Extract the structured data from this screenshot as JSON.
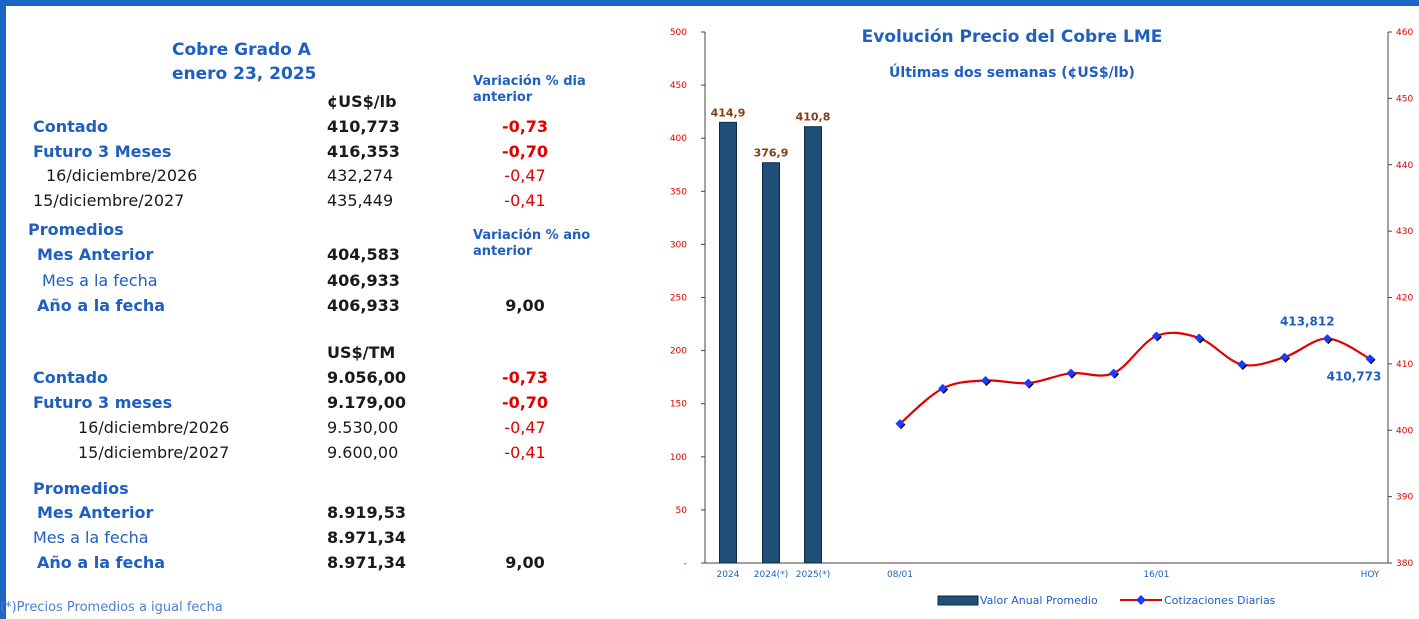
{
  "table": {
    "title": "Cobre Grado A",
    "date": "enero 23, 2025",
    "var_dia_header_1": "Variación % dia",
    "var_dia_header_2": "anterior",
    "var_anio_header_1": "Variación % año",
    "var_anio_header_2": "anterior",
    "unit_lb": "¢US$/lb",
    "unit_tm": "US$/TM",
    "lb_rows": [
      {
        "label": "Contado",
        "value": "410,773",
        "var": "-0,73"
      },
      {
        "label": "Futuro 3 Meses",
        "value": "416,353",
        "var": "-0,70"
      },
      {
        "label": "16/diciembre/2026",
        "value": "432,274",
        "var": "-0,47"
      },
      {
        "label": "15/diciembre/2027",
        "value": "435,449",
        "var": "-0,41"
      }
    ],
    "lb_promedios": {
      "title": "Promedios",
      "rows": [
        {
          "label": "Mes Anterior",
          "value": "404,583",
          "var": ""
        },
        {
          "label": "Mes a la fecha",
          "value": "406,933",
          "var": ""
        },
        {
          "label": "Año a la fecha",
          "value": "406,933",
          "var": "9,00"
        }
      ]
    },
    "tm_rows": [
      {
        "label": "Contado",
        "value": "9.056,00",
        "var": "-0,73"
      },
      {
        "label": "Futuro 3 meses",
        "value": "9.179,00",
        "var": "-0,70"
      },
      {
        "label": "16/diciembre/2026",
        "value": "9.530,00",
        "var": "-0,47"
      },
      {
        "label": "15/diciembre/2027",
        "value": "9.600,00",
        "var": "-0,41"
      }
    ],
    "tm_promedios": {
      "title": "Promedios",
      "rows": [
        {
          "label": "Mes Anterior",
          "value": "8.919,53",
          "var": ""
        },
        {
          "label": "Mes a la fecha",
          "value": "8.971,34",
          "var": ""
        },
        {
          "label": "Año a la fecha",
          "value": "8.971,34",
          "var": "9,00"
        }
      ]
    },
    "footnote": "(*)Precios Promedios a igual  fecha"
  },
  "colors": {
    "accent_blue": "#1f5fbf",
    "negative_red": "#e00000",
    "bar_fill": "#1f4e79",
    "line_red": "#e00000",
    "marker_blue": "#1a3cff"
  },
  "chart_data": {
    "type": "bar+line",
    "title": "Evolución Precio del Cobre LME",
    "subtitle": "Últimas dos semanas (¢US$/lb)",
    "bars": {
      "name": "Valor Anual Promedio",
      "categories": [
        "2024",
        "2024(*)",
        "2025(*)"
      ],
      "values": [
        414.9,
        376.9,
        410.8
      ],
      "labels": [
        "414,9",
        "376,9",
        "410,8"
      ],
      "axis": "left"
    },
    "line": {
      "name": "Cotizaciones Diarias",
      "values": [
        401.0,
        406.3,
        407.5,
        407.1,
        408.6,
        408.6,
        414.2,
        413.9,
        409.9,
        411.0,
        413.812,
        410.773
      ],
      "labels": {
        "10": "413,812",
        "11": "410,773"
      },
      "x_tick_labels": {
        "0": "08/01",
        "6": "16/01",
        "11": "HOY"
      },
      "axis": "right"
    },
    "y_left": {
      "min": 0,
      "max": 500,
      "step": 50,
      "zero_label": "-"
    },
    "y_right": {
      "min": 380,
      "max": 460,
      "step": 10
    },
    "legend": "bottom",
    "grid": false
  }
}
